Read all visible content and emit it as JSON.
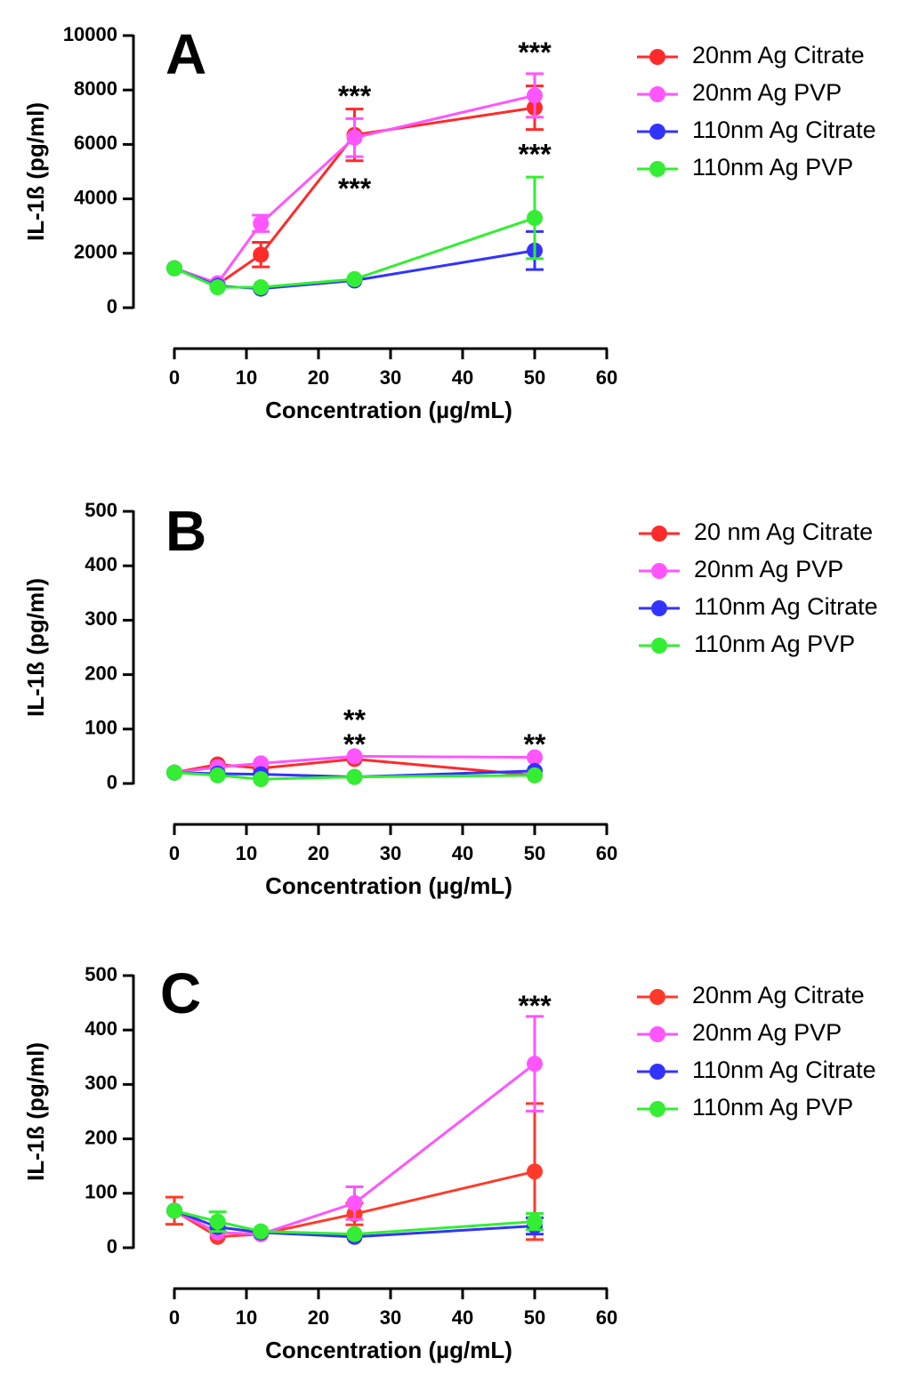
{
  "chart_data": [
    {
      "type": "line",
      "panel": "A",
      "xlabel": "Concentration (µg/mL)",
      "ylabel": "IL-1ß (pg/ml)",
      "xlim": [
        0,
        60
      ],
      "ylim": [
        0,
        10000
      ],
      "xticks": [
        0,
        10,
        20,
        30,
        40,
        50,
        60
      ],
      "yticks": [
        0,
        2000,
        4000,
        6000,
        8000,
        10000
      ],
      "x": [
        0,
        6,
        12,
        25,
        50
      ],
      "grid": false,
      "legend_position": "right",
      "series": [
        {
          "name": "20nm Ag Citrate",
          "color": "#ff2a2a",
          "values": [
            1450,
            850,
            1950,
            6350,
            7350
          ],
          "errors": [
            0,
            0,
            450,
            950,
            800
          ]
        },
        {
          "name": "20nm Ag PVP",
          "color": "#ff55ff",
          "values": [
            1450,
            900,
            3100,
            6250,
            7800
          ],
          "errors": [
            0,
            0,
            300,
            700,
            800
          ]
        },
        {
          "name": "110nm Ag Citrate",
          "color": "#3333ff",
          "values": [
            1450,
            800,
            700,
            1000,
            2100
          ],
          "errors": [
            0,
            0,
            0,
            0,
            700
          ]
        },
        {
          "name": "110nm Ag PVP",
          "color": "#33ee33",
          "values": [
            1450,
            750,
            750,
            1050,
            3300
          ],
          "errors": [
            0,
            0,
            0,
            0,
            1500
          ]
        }
      ],
      "annotations": [
        {
          "text": "***",
          "x": 25,
          "y": 7700
        },
        {
          "text": "***",
          "x": 25,
          "y": 4300
        },
        {
          "text": "***",
          "x": 50,
          "y": 9300
        },
        {
          "text": "***",
          "x": 50,
          "y": 5550
        }
      ]
    },
    {
      "type": "line",
      "panel": "B",
      "xlabel": "Concentration (µg/mL)",
      "ylabel": "IL-1ß (pg/ml)",
      "xlim": [
        0,
        60
      ],
      "ylim": [
        0,
        500
      ],
      "xticks": [
        0,
        10,
        20,
        30,
        40,
        50,
        60
      ],
      "yticks": [
        0,
        100,
        200,
        300,
        400,
        500
      ],
      "x": [
        0,
        6,
        12,
        25,
        50
      ],
      "grid": false,
      "legend_position": "right",
      "series": [
        {
          "name": "20 nm Ag Citrate",
          "color": "#ff2a2a",
          "values": [
            20,
            35,
            28,
            45,
            15
          ],
          "errors": [
            0,
            0,
            0,
            0,
            0
          ]
        },
        {
          "name": "20nm Ag PVP",
          "color": "#ff55ff",
          "values": [
            20,
            30,
            37,
            50,
            48
          ],
          "errors": [
            0,
            0,
            0,
            0,
            0
          ]
        },
        {
          "name": "110nm Ag Citrate",
          "color": "#3333ff",
          "values": [
            20,
            18,
            17,
            12,
            23
          ],
          "errors": [
            0,
            0,
            0,
            0,
            0
          ]
        },
        {
          "name": "110nm Ag PVP",
          "color": "#33ee33",
          "values": [
            20,
            15,
            8,
            12,
            15
          ],
          "errors": [
            0,
            0,
            0,
            0,
            0
          ]
        }
      ],
      "annotations": [
        {
          "text": "**",
          "x": 25,
          "y": 113
        },
        {
          "text": "**",
          "x": 25,
          "y": 68
        },
        {
          "text": "**",
          "x": 50,
          "y": 68
        }
      ]
    },
    {
      "type": "line",
      "panel": "C",
      "xlabel": "Concentration (µg/mL)",
      "ylabel": "IL-1ß (pg/ml)",
      "xlim": [
        0,
        60
      ],
      "ylim": [
        0,
        500
      ],
      "xticks": [
        0,
        10,
        20,
        30,
        40,
        50,
        60
      ],
      "yticks": [
        0,
        100,
        200,
        300,
        400,
        500
      ],
      "x": [
        0,
        6,
        12,
        25,
        50
      ],
      "grid": false,
      "legend_position": "right",
      "series": [
        {
          "name": "20nm Ag Citrate",
          "color": "#ff3a2a",
          "values": [
            68,
            20,
            25,
            62,
            140
          ],
          "errors": [
            25,
            0,
            0,
            20,
            125
          ]
        },
        {
          "name": "20nm Ag PVP",
          "color": "#ff55ff",
          "values": [
            68,
            28,
            25,
            82,
            338
          ],
          "errors": [
            0,
            0,
            0,
            30,
            87
          ]
        },
        {
          "name": "110nm Ag Citrate",
          "color": "#3333ff",
          "values": [
            68,
            38,
            28,
            20,
            40
          ],
          "errors": [
            0,
            0,
            0,
            0,
            15
          ]
        },
        {
          "name": "110nm Ag PVP",
          "color": "#33ee33",
          "values": [
            68,
            48,
            30,
            25,
            48
          ],
          "errors": [
            0,
            18,
            0,
            0,
            15
          ]
        }
      ],
      "annotations": [
        {
          "text": "***",
          "x": 50,
          "y": 440
        }
      ]
    }
  ]
}
